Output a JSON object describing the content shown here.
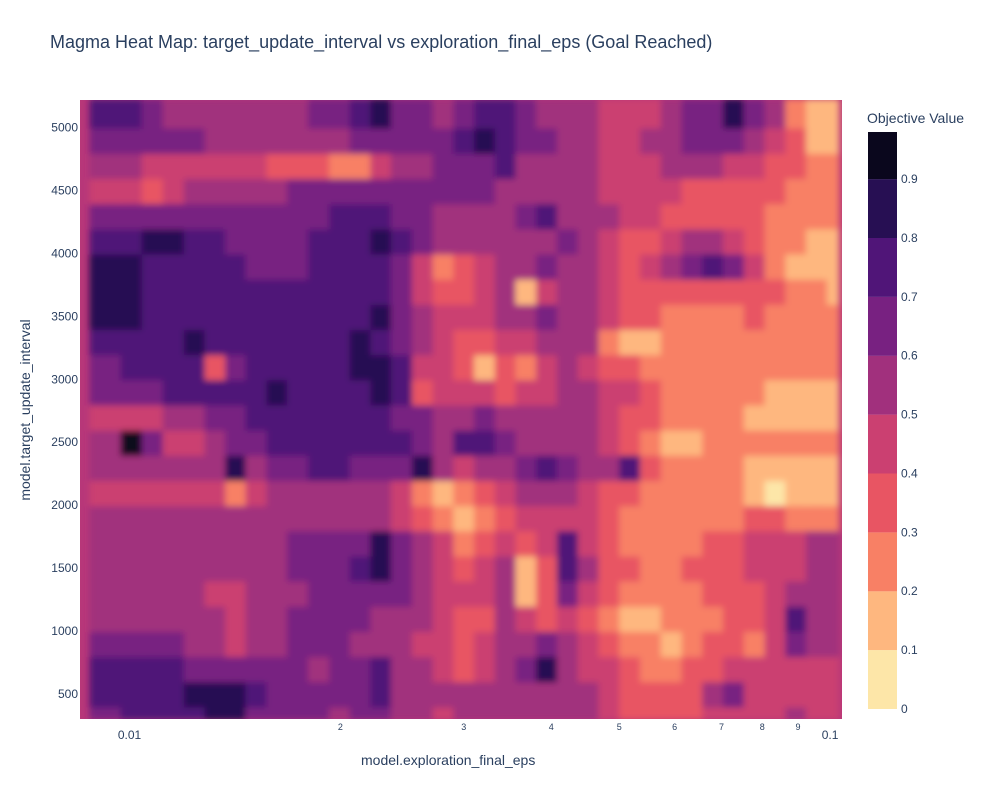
{
  "chart_data": {
    "type": "heatmap",
    "title": "Magma Heat Map: target_update_interval vs exploration_final_eps (Goal Reached)",
    "xlabel": "model.exploration_final_eps",
    "ylabel": "model.target_update_interval",
    "x_scale": "log",
    "xlim": [
      0.0085,
      0.104
    ],
    "ylim": [
      300,
      5220
    ],
    "x_ticks": [
      {
        "value": 0.01,
        "label": "0.01"
      },
      {
        "value": 0.02,
        "label": "2"
      },
      {
        "value": 0.03,
        "label": "3"
      },
      {
        "value": 0.04,
        "label": "4"
      },
      {
        "value": 0.05,
        "label": "5"
      },
      {
        "value": 0.06,
        "label": "6"
      },
      {
        "value": 0.07,
        "label": "7"
      },
      {
        "value": 0.08,
        "label": "8"
      },
      {
        "value": 0.09,
        "label": "9"
      },
      {
        "value": 0.1,
        "label": "0.1"
      }
    ],
    "y_ticks": [
      500,
      1000,
      1500,
      2000,
      2500,
      3000,
      3500,
      4000,
      4500,
      5000
    ],
    "colorbar": {
      "title": "Objective Value",
      "ticks": [
        0,
        0.1,
        0.2,
        0.3,
        0.4,
        0.5,
        0.6,
        0.7,
        0.8,
        0.9
      ],
      "range": [
        0,
        0.98
      ],
      "colorscale": "Magma (reversed)"
    },
    "x": [
      0.0088,
      0.0094,
      0.0101,
      0.0108,
      0.0116,
      0.0124,
      0.0133,
      0.0142,
      0.0152,
      0.0163,
      0.0174,
      0.0187,
      0.02,
      0.0214,
      0.0229,
      0.0245,
      0.0263,
      0.0281,
      0.0301,
      0.0322,
      0.0345,
      0.0369,
      0.0395,
      0.0423,
      0.0453,
      0.0485,
      0.0519,
      0.0556,
      0.0595,
      0.0637,
      0.0682,
      0.073,
      0.0782,
      0.0837,
      0.0896,
      0.0959,
      0.1027
    ],
    "y": [
      300,
      500,
      700,
      900,
      1100,
      1300,
      1500,
      1700,
      1900,
      2100,
      2300,
      2500,
      2700,
      2900,
      3100,
      3300,
      3500,
      3700,
      3900,
      4100,
      4300,
      4500,
      4700,
      4900,
      5100,
      5220
    ],
    "z": [
      [
        0.68,
        0.68,
        0.7,
        0.72,
        0.74,
        0.78,
        0.8,
        0.82,
        0.66,
        0.64,
        0.62,
        0.6,
        0.58,
        0.6,
        0.62,
        0.56,
        0.52,
        0.48,
        0.5,
        0.52,
        0.55,
        0.56,
        0.58,
        0.56,
        0.52,
        0.44,
        0.38,
        0.34,
        0.3,
        0.34,
        0.4,
        0.44,
        0.46,
        0.48,
        0.5,
        0.48,
        0.48
      ],
      [
        0.7,
        0.7,
        0.72,
        0.74,
        0.76,
        0.8,
        0.82,
        0.85,
        0.7,
        0.66,
        0.64,
        0.62,
        0.62,
        0.64,
        0.7,
        0.58,
        0.54,
        0.5,
        0.5,
        0.52,
        0.55,
        0.56,
        0.58,
        0.56,
        0.52,
        0.44,
        0.38,
        0.32,
        0.3,
        0.36,
        0.5,
        0.62,
        0.48,
        0.44,
        0.46,
        0.48,
        0.48
      ],
      [
        0.7,
        0.7,
        0.7,
        0.7,
        0.7,
        0.68,
        0.66,
        0.64,
        0.62,
        0.6,
        0.6,
        0.58,
        0.6,
        0.62,
        0.72,
        0.56,
        0.5,
        0.46,
        0.34,
        0.4,
        0.56,
        0.6,
        0.8,
        0.56,
        0.48,
        0.4,
        0.32,
        0.28,
        0.26,
        0.3,
        0.36,
        0.4,
        0.4,
        0.42,
        0.44,
        0.46,
        0.46
      ],
      [
        0.64,
        0.64,
        0.66,
        0.66,
        0.64,
        0.58,
        0.5,
        0.46,
        0.54,
        0.58,
        0.62,
        0.64,
        0.62,
        0.58,
        0.5,
        0.5,
        0.48,
        0.44,
        0.34,
        0.42,
        0.52,
        0.56,
        0.6,
        0.52,
        0.42,
        0.3,
        0.26,
        0.22,
        0.1,
        0.2,
        0.3,
        0.34,
        0.2,
        0.4,
        0.62,
        0.5,
        0.5
      ],
      [
        0.58,
        0.58,
        0.58,
        0.56,
        0.56,
        0.56,
        0.52,
        0.4,
        0.5,
        0.56,
        0.6,
        0.62,
        0.62,
        0.6,
        0.56,
        0.54,
        0.5,
        0.4,
        0.3,
        0.36,
        0.5,
        0.4,
        0.3,
        0.4,
        0.38,
        0.22,
        0.18,
        0.16,
        0.2,
        0.24,
        0.28,
        0.3,
        0.3,
        0.44,
        0.7,
        0.58,
        0.56
      ],
      [
        0.56,
        0.56,
        0.56,
        0.54,
        0.52,
        0.5,
        0.48,
        0.46,
        0.5,
        0.54,
        0.58,
        0.6,
        0.62,
        0.64,
        0.66,
        0.6,
        0.52,
        0.46,
        0.4,
        0.44,
        0.56,
        0.16,
        0.34,
        0.6,
        0.46,
        0.32,
        0.22,
        0.2,
        0.22,
        0.26,
        0.3,
        0.34,
        0.36,
        0.44,
        0.54,
        0.56,
        0.56
      ],
      [
        0.54,
        0.54,
        0.54,
        0.54,
        0.52,
        0.5,
        0.5,
        0.5,
        0.52,
        0.56,
        0.6,
        0.64,
        0.66,
        0.7,
        0.82,
        0.66,
        0.56,
        0.46,
        0.34,
        0.4,
        0.52,
        0.12,
        0.3,
        0.7,
        0.5,
        0.34,
        0.3,
        0.28,
        0.26,
        0.3,
        0.34,
        0.38,
        0.4,
        0.44,
        0.48,
        0.5,
        0.5
      ],
      [
        0.54,
        0.54,
        0.54,
        0.52,
        0.52,
        0.52,
        0.52,
        0.52,
        0.54,
        0.58,
        0.62,
        0.64,
        0.66,
        0.68,
        0.8,
        0.64,
        0.54,
        0.4,
        0.22,
        0.3,
        0.46,
        0.3,
        0.4,
        0.72,
        0.48,
        0.3,
        0.24,
        0.24,
        0.22,
        0.24,
        0.3,
        0.36,
        0.4,
        0.44,
        0.48,
        0.5,
        0.5
      ],
      [
        0.5,
        0.5,
        0.5,
        0.5,
        0.5,
        0.5,
        0.5,
        0.5,
        0.52,
        0.54,
        0.56,
        0.58,
        0.58,
        0.56,
        0.54,
        0.48,
        0.38,
        0.26,
        0.12,
        0.22,
        0.38,
        0.44,
        0.46,
        0.44,
        0.4,
        0.3,
        0.26,
        0.24,
        0.22,
        0.24,
        0.26,
        0.28,
        0.32,
        0.3,
        0.26,
        0.24,
        0.22
      ],
      [
        0.48,
        0.48,
        0.48,
        0.48,
        0.48,
        0.48,
        0.42,
        0.2,
        0.44,
        0.52,
        0.56,
        0.58,
        0.58,
        0.56,
        0.52,
        0.44,
        0.28,
        0.18,
        0.24,
        0.34,
        0.44,
        0.5,
        0.52,
        0.5,
        0.46,
        0.38,
        0.3,
        0.26,
        0.22,
        0.22,
        0.22,
        0.2,
        0.14,
        0.08,
        0.1,
        0.12,
        0.14
      ],
      [
        0.5,
        0.5,
        0.5,
        0.5,
        0.5,
        0.5,
        0.56,
        0.8,
        0.58,
        0.62,
        0.66,
        0.72,
        0.7,
        0.66,
        0.64,
        0.68,
        0.8,
        0.5,
        0.46,
        0.5,
        0.56,
        0.64,
        0.74,
        0.64,
        0.58,
        0.5,
        0.74,
        0.34,
        0.28,
        0.26,
        0.24,
        0.22,
        0.18,
        0.14,
        0.14,
        0.16,
        0.18
      ],
      [
        0.52,
        0.52,
        0.9,
        0.6,
        0.4,
        0.48,
        0.56,
        0.62,
        0.66,
        0.7,
        0.72,
        0.76,
        0.76,
        0.74,
        0.76,
        0.7,
        0.62,
        0.56,
        0.7,
        0.76,
        0.62,
        0.58,
        0.56,
        0.54,
        0.52,
        0.44,
        0.3,
        0.2,
        0.14,
        0.18,
        0.22,
        0.24,
        0.24,
        0.24,
        0.22,
        0.2,
        0.2
      ],
      [
        0.46,
        0.46,
        0.46,
        0.48,
        0.52,
        0.56,
        0.62,
        0.66,
        0.7,
        0.72,
        0.74,
        0.76,
        0.76,
        0.76,
        0.74,
        0.68,
        0.6,
        0.5,
        0.58,
        0.62,
        0.56,
        0.52,
        0.5,
        0.5,
        0.5,
        0.46,
        0.38,
        0.3,
        0.26,
        0.24,
        0.22,
        0.2,
        0.18,
        0.18,
        0.18,
        0.18,
        0.18
      ],
      [
        0.62,
        0.62,
        0.64,
        0.68,
        0.7,
        0.7,
        0.72,
        0.76,
        0.78,
        0.8,
        0.78,
        0.76,
        0.76,
        0.78,
        0.82,
        0.76,
        0.36,
        0.4,
        0.44,
        0.4,
        0.38,
        0.44,
        0.48,
        0.5,
        0.5,
        0.46,
        0.4,
        0.34,
        0.28,
        0.26,
        0.24,
        0.22,
        0.2,
        0.18,
        0.18,
        0.18,
        0.18
      ],
      [
        0.66,
        0.66,
        0.7,
        0.72,
        0.74,
        0.74,
        0.3,
        0.66,
        0.72,
        0.76,
        0.76,
        0.76,
        0.78,
        0.8,
        0.84,
        0.74,
        0.46,
        0.4,
        0.34,
        0.16,
        0.36,
        0.28,
        0.42,
        0.5,
        0.48,
        0.38,
        0.3,
        0.24,
        0.22,
        0.22,
        0.22,
        0.22,
        0.2,
        0.2,
        0.2,
        0.2,
        0.2
      ],
      [
        0.72,
        0.72,
        0.74,
        0.76,
        0.78,
        0.8,
        0.76,
        0.72,
        0.74,
        0.76,
        0.76,
        0.74,
        0.76,
        0.8,
        0.74,
        0.66,
        0.5,
        0.42,
        0.36,
        0.34,
        0.4,
        0.48,
        0.56,
        0.58,
        0.5,
        0.24,
        0.1,
        0.14,
        0.2,
        0.22,
        0.22,
        0.22,
        0.2,
        0.2,
        0.2,
        0.2,
        0.2
      ],
      [
        0.86,
        0.86,
        0.8,
        0.78,
        0.78,
        0.78,
        0.76,
        0.72,
        0.7,
        0.7,
        0.7,
        0.7,
        0.72,
        0.78,
        0.84,
        0.68,
        0.56,
        0.48,
        0.4,
        0.42,
        0.52,
        0.56,
        0.66,
        0.58,
        0.5,
        0.4,
        0.34,
        0.3,
        0.28,
        0.26,
        0.26,
        0.28,
        0.3,
        0.24,
        0.22,
        0.22,
        0.22
      ],
      [
        0.88,
        0.88,
        0.8,
        0.76,
        0.74,
        0.72,
        0.7,
        0.7,
        0.7,
        0.7,
        0.7,
        0.72,
        0.72,
        0.74,
        0.76,
        0.64,
        0.46,
        0.32,
        0.36,
        0.48,
        0.54,
        0.18,
        0.46,
        0.58,
        0.52,
        0.44,
        0.36,
        0.34,
        0.34,
        0.34,
        0.34,
        0.34,
        0.34,
        0.3,
        0.22,
        0.2,
        0.18
      ],
      [
        0.86,
        0.86,
        0.82,
        0.76,
        0.74,
        0.72,
        0.7,
        0.7,
        0.68,
        0.68,
        0.68,
        0.7,
        0.7,
        0.7,
        0.7,
        0.62,
        0.48,
        0.28,
        0.3,
        0.46,
        0.56,
        0.52,
        0.6,
        0.58,
        0.5,
        0.4,
        0.3,
        0.4,
        0.52,
        0.66,
        0.78,
        0.66,
        0.4,
        0.24,
        0.14,
        0.16,
        0.18
      ],
      [
        0.74,
        0.74,
        0.78,
        0.8,
        0.82,
        0.72,
        0.7,
        0.66,
        0.6,
        0.62,
        0.68,
        0.72,
        0.74,
        0.78,
        0.82,
        0.74,
        0.64,
        0.58,
        0.56,
        0.58,
        0.56,
        0.54,
        0.58,
        0.6,
        0.56,
        0.46,
        0.38,
        0.36,
        0.44,
        0.56,
        0.54,
        0.44,
        0.34,
        0.26,
        0.2,
        0.18,
        0.18
      ],
      [
        0.6,
        0.6,
        0.64,
        0.66,
        0.66,
        0.64,
        0.62,
        0.6,
        0.62,
        0.64,
        0.66,
        0.68,
        0.7,
        0.72,
        0.7,
        0.66,
        0.62,
        0.58,
        0.56,
        0.54,
        0.56,
        0.6,
        0.7,
        0.58,
        0.54,
        0.5,
        0.44,
        0.4,
        0.38,
        0.36,
        0.34,
        0.32,
        0.3,
        0.28,
        0.24,
        0.22,
        0.22
      ],
      [
        0.42,
        0.42,
        0.4,
        0.3,
        0.44,
        0.5,
        0.52,
        0.54,
        0.56,
        0.58,
        0.6,
        0.62,
        0.64,
        0.66,
        0.66,
        0.64,
        0.62,
        0.6,
        0.62,
        0.6,
        0.56,
        0.54,
        0.54,
        0.52,
        0.5,
        0.48,
        0.44,
        0.42,
        0.4,
        0.36,
        0.32,
        0.3,
        0.3,
        0.3,
        0.28,
        0.24,
        0.22
      ],
      [
        0.52,
        0.52,
        0.5,
        0.48,
        0.46,
        0.44,
        0.42,
        0.4,
        0.4,
        0.38,
        0.36,
        0.34,
        0.2,
        0.28,
        0.4,
        0.5,
        0.56,
        0.6,
        0.62,
        0.68,
        0.74,
        0.58,
        0.54,
        0.5,
        0.5,
        0.44,
        0.4,
        0.44,
        0.5,
        0.52,
        0.52,
        0.48,
        0.44,
        0.38,
        0.3,
        0.24,
        0.2
      ],
      [
        0.62,
        0.62,
        0.62,
        0.62,
        0.62,
        0.6,
        0.56,
        0.54,
        0.52,
        0.52,
        0.54,
        0.56,
        0.58,
        0.6,
        0.62,
        0.64,
        0.66,
        0.68,
        0.72,
        0.8,
        0.76,
        0.66,
        0.6,
        0.56,
        0.52,
        0.48,
        0.48,
        0.52,
        0.56,
        0.6,
        0.62,
        0.6,
        0.56,
        0.48,
        0.3,
        0.18,
        0.16
      ],
      [
        0.7,
        0.7,
        0.72,
        0.66,
        0.58,
        0.56,
        0.54,
        0.54,
        0.54,
        0.56,
        0.58,
        0.62,
        0.66,
        0.7,
        0.8,
        0.66,
        0.6,
        0.58,
        0.62,
        0.72,
        0.76,
        0.64,
        0.58,
        0.54,
        0.5,
        0.46,
        0.44,
        0.46,
        0.54,
        0.62,
        0.66,
        0.8,
        0.62,
        0.5,
        0.22,
        0.1,
        0.14
      ],
      [
        0.7,
        0.7,
        0.72,
        0.66,
        0.58,
        0.56,
        0.54,
        0.54,
        0.54,
        0.56,
        0.58,
        0.62,
        0.66,
        0.7,
        0.8,
        0.66,
        0.6,
        0.58,
        0.62,
        0.72,
        0.76,
        0.64,
        0.58,
        0.54,
        0.5,
        0.46,
        0.44,
        0.46,
        0.54,
        0.62,
        0.66,
        0.8,
        0.62,
        0.5,
        0.22,
        0.1,
        0.14
      ]
    ]
  }
}
